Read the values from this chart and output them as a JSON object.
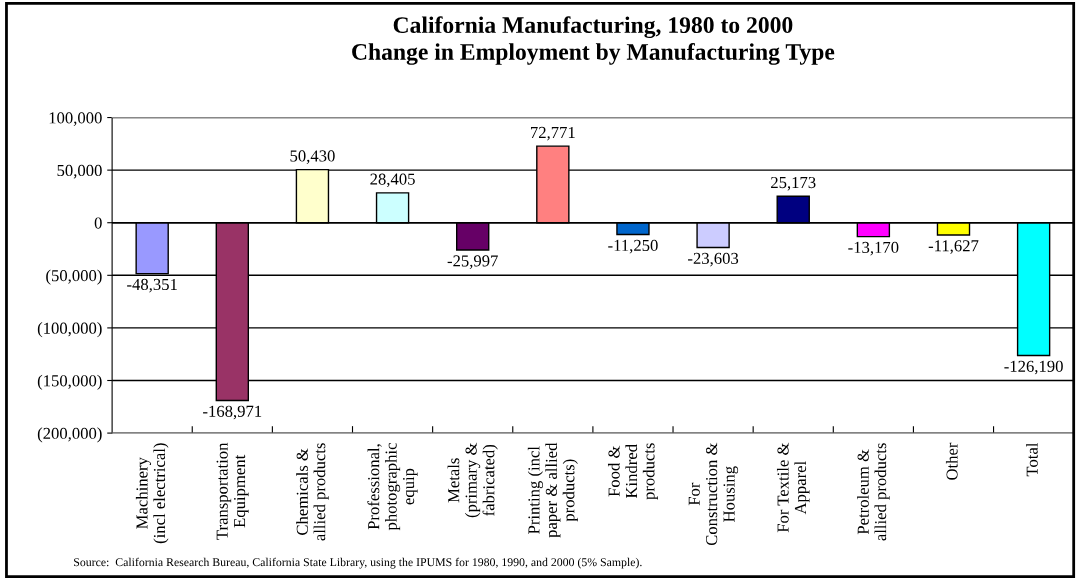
{
  "chart_data": {
    "type": "bar",
    "title": "California Manufacturing, 1980 to 2000\nChange in Employment by Manufacturing Type",
    "categories": [
      "Machinery\n(incl electrical)",
      "Transportation\nEquipment",
      "Chemicals &\nallied products",
      "Professional,\nphotographic\nequip",
      "Metals\n(primary &\nfabricated)",
      "Printing (incl\npaper & allied\nproducts)",
      "Food &\nKindred\nproducts",
      "For\nConstruction &\nHousing",
      "For Textile &\nApparel",
      "Petroleum &\nallied products",
      "Other",
      "Total"
    ],
    "values": [
      -48351,
      -168971,
      50430,
      28405,
      -25997,
      72771,
      -11250,
      -23603,
      25173,
      -13170,
      -11627,
      -126190
    ],
    "colors": [
      "#9999ff",
      "#993366",
      "#ffffcc",
      "#ccffff",
      "#660066",
      "#ff8080",
      "#0066cc",
      "#ccccff",
      "#000080",
      "#ff00ff",
      "#ffff00",
      "#00ffff"
    ],
    "value_labels": [
      "-48,351",
      "-168,971",
      "50,430",
      "28,405",
      "-25,997",
      "72,771",
      "-11,250",
      "-23,603",
      "25,173",
      "-13,170",
      "-11,627",
      "-126,190"
    ],
    "ylim": [
      -200000,
      100000
    ],
    "yticks": [
      {
        "value": -200000,
        "label": "(200,000)"
      },
      {
        "value": -150000,
        "label": "(150,000)"
      },
      {
        "value": -100000,
        "label": "(100,000)"
      },
      {
        "value": -50000,
        "label": "(50,000)"
      },
      0,
      {
        "value": 50000,
        "label": "50,000"
      },
      {
        "value": 100000,
        "label": "100,000"
      }
    ],
    "grid": "y",
    "annotations": [
      "Source:  California Research Bureau, California State Library, using the IPUMS for 1980, 1990, and 2000 (5% Sample)."
    ]
  }
}
